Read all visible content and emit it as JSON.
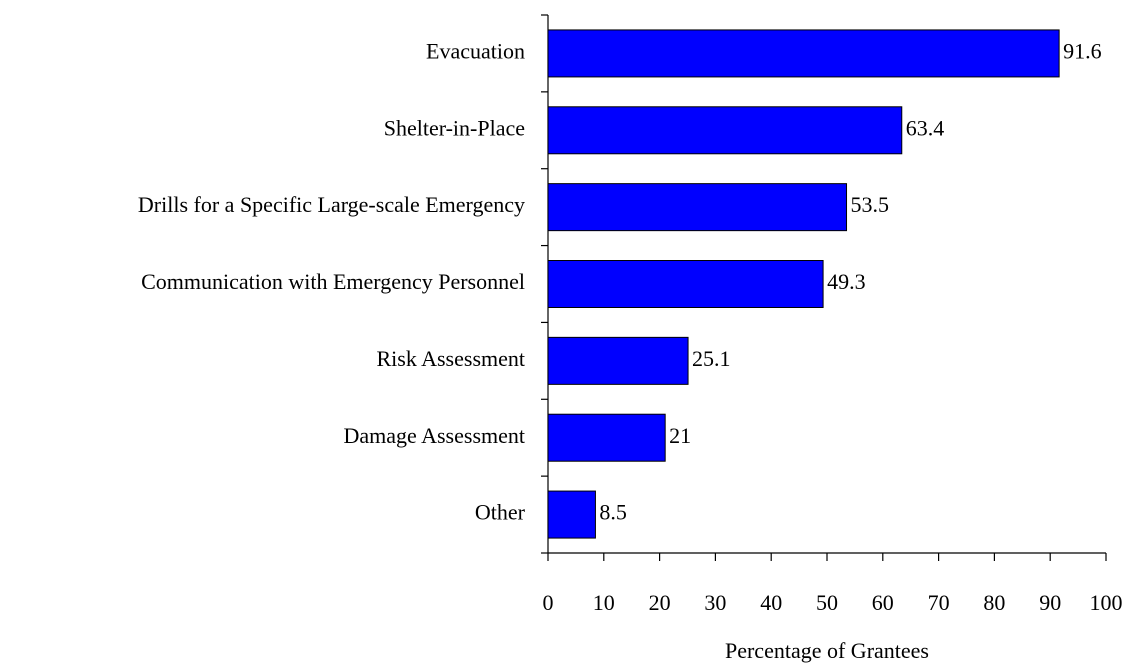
{
  "chart_data": {
    "type": "barh",
    "x_label": "Percentage of Grantees",
    "categories": [
      "Evacuation",
      "Shelter-in-Place",
      "Drills for a Specific Large-scale Emergency",
      "Communication with Emergency Personnel",
      "Risk Assessment",
      "Damage Assessment",
      "Other"
    ],
    "values": [
      91.6,
      63.4,
      53.5,
      49.3,
      25.1,
      21,
      8.5
    ],
    "color": "#0000ff",
    "xlim": [
      0,
      100
    ],
    "xticks": [
      0,
      10,
      20,
      30,
      40,
      50,
      60,
      70,
      80,
      90,
      100
    ],
    "grid": false
  }
}
